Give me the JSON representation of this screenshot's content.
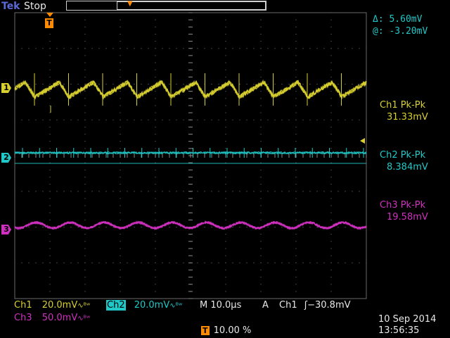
{
  "header": {
    "brand": "Tek",
    "run_state": "Stop"
  },
  "cursor_readout": {
    "delta": "Δ:  5.60mV",
    "at": "@: -3.20mV"
  },
  "measurements": [
    {
      "label": "Ch1 Pk-Pk",
      "value": "31.33mV",
      "color": "#d8d030"
    },
    {
      "label": "Ch2 Pk-Pk",
      "value": "8.384mV",
      "color": "#20c8c8"
    },
    {
      "label": "Ch3 Pk-Pk",
      "value": "19.58mV",
      "color": "#d030c0"
    }
  ],
  "channels": [
    {
      "id": "1",
      "color": "#d8d030"
    },
    {
      "id": "2",
      "color": "#20c8c8"
    },
    {
      "id": "3",
      "color": "#d030c0"
    }
  ],
  "bottom": {
    "ch1_name": "Ch1",
    "ch1_scale": "20.0mV",
    "ch1_bw": "∿ᴮʷ",
    "ch2_name": "Ch2",
    "ch2_scale": "20.0mV",
    "ch2_bw": "∿ᴮʷ",
    "timebase": "M 10.0µs",
    "acq_mode": "A",
    "trigger_source": "Ch1",
    "trigger_slope_level": "ʃ−30.8mV",
    "ch3_name": "Ch3",
    "ch3_scale": "50.0mV",
    "ch3_bw": "∿ᴮʷ",
    "trigger_position_icon": "T",
    "trigger_position": "10.00 %",
    "date": "10 Sep  2014",
    "time": "13:56:35"
  },
  "trigger_marker": "T",
  "colors": {
    "ch1": "#d8d030",
    "ch2": "#20c8c8",
    "ch3": "#d030c0",
    "trigger": "#ff8c00"
  }
}
